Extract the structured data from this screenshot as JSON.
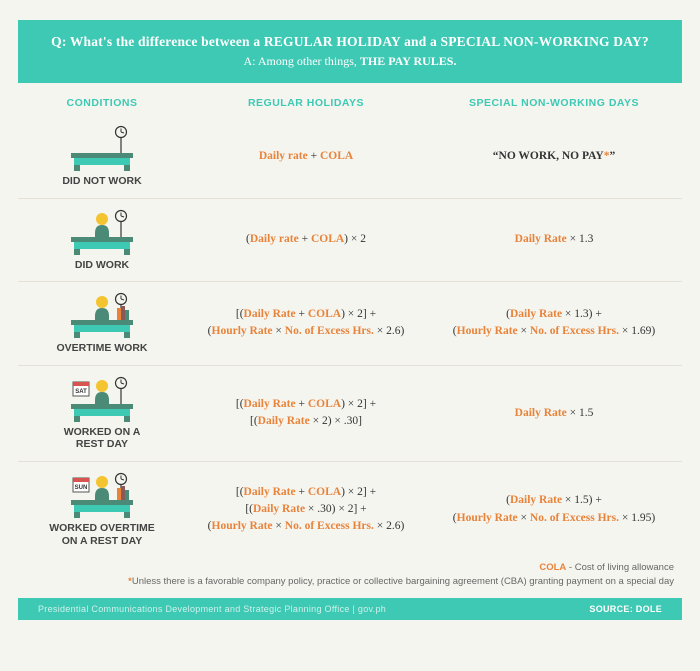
{
  "colors": {
    "teal": "#3dc9b3",
    "orange": "#e8833a",
    "bg": "#f5f5f0",
    "desk_board": "#4a8a76",
    "desk_legs_interior": "#3dc9b3",
    "clock_stroke": "#333"
  },
  "header": {
    "question": "Q: What's the difference between a REGULAR HOLIDAY and a  SPECIAL NON-WORKING DAY?",
    "answer_prefix": "A: Among other things, ",
    "answer_bold": "THE PAY RULES."
  },
  "columns": {
    "conditions": "CONDITIONS",
    "regular": "REGULAR HOLIDAYS",
    "special": "SPECIAL NON-WORKING DAYS"
  },
  "rows": [
    {
      "icon": "desk-empty",
      "label": "DID NOT WORK",
      "regular_html": "<span class='orange'>Daily rate</span> + <span class='orange'>COLA</span>",
      "special_html": "<span class='bold'>&ldquo;NO WORK, NO PAY<span class='star'>*</span>&rdquo;</span>"
    },
    {
      "icon": "desk-person",
      "label": "DID WORK",
      "regular_html": "(<span class='orange'>Daily rate</span> + <span class='orange'>COLA</span>) &times; 2",
      "special_html": "<span class='orange'>Daily Rate</span> &times; 1.3"
    },
    {
      "icon": "desk-books",
      "label": "OVERTIME WORK",
      "regular_html": "[(<span class='orange'>Daily Rate</span> + <span class='orange'>COLA</span>) &times; 2] +<br>(<span class='orange'>Hourly Rate</span> &times; <span class='orange'>No. of Excess Hrs.</span> &times; 2.6)",
      "special_html": "(<span class='orange'>Daily Rate</span> &times; 1.3) +<br>(<span class='orange'>Hourly Rate</span> &times; <span class='orange'>No. of Excess Hrs.</span> &times; 1.69)"
    },
    {
      "icon": "desk-sat",
      "label": "WORKED ON A<br>REST DAY",
      "regular_html": "[(<span class='orange'>Daily Rate</span> + <span class='orange'>COLA</span>) &times; 2] +<br>[(<span class='orange'>Daily Rate</span> &times; 2) &times; .30]",
      "special_html": "<span class='orange'>Daily Rate</span> &times; 1.5"
    },
    {
      "icon": "desk-sun",
      "label": "WORKED OVERTIME<br>ON A REST DAY",
      "regular_html": "[(<span class='orange'>Daily Rate</span> + <span class='orange'>COLA</span>) &times; 2] +<br>[(<span class='orange'>Daily Rate</span> &times; .30) &times; 2] +<br>(<span class='orange'>Hourly Rate</span> &times; <span class='orange'>No. of Excess Hrs.</span> &times; 2.6)",
      "special_html": "(<span class='orange'>Daily Rate</span> &times; 1.5) +<br>(<span class='orange'>Hourly Rate</span> &times; <span class='orange'>No. of Excess Hrs.</span> &times; 1.95)"
    }
  ],
  "notes": {
    "cola_label": "COLA",
    "cola_text": " - Cost of living allowance",
    "asterisk_text": "Unless there is a favorable company policy, practice or collective bargaining agreement (CBA) granting payment on a special day"
  },
  "footer": {
    "left": "Presidential Communications Development and Strategic Planning Office | gov.ph",
    "right": "SOURCE: DOLE"
  },
  "icon_calendar_labels": {
    "sat": "SAT",
    "sun": "SUN"
  }
}
